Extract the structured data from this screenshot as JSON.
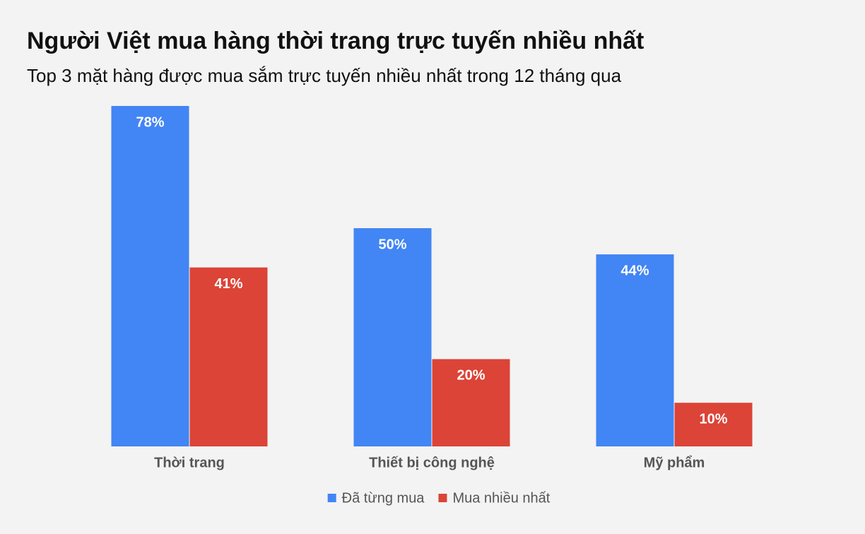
{
  "chart_data": {
    "type": "bar",
    "title": "Người Việt mua hàng thời trang trực tuyến nhiều nhất",
    "subtitle": "Top 3 mặt hàng được mua sắm trực tuyến nhiều nhất trong 12 tháng qua",
    "categories": [
      "Thời trang",
      "Thiết bị công nghệ",
      "Mỹ phẩm"
    ],
    "series": [
      {
        "name": "Đã từng mua",
        "color": "#4285f4",
        "values": [
          78,
          50,
          44
        ],
        "value_labels": [
          "78%",
          "50%",
          "44%"
        ]
      },
      {
        "name": "Mua nhiều nhất",
        "color": "#db4437",
        "values": [
          41,
          20,
          10
        ],
        "value_labels": [
          "41%",
          "20%",
          "10%"
        ]
      }
    ],
    "legend": "bottom"
  }
}
